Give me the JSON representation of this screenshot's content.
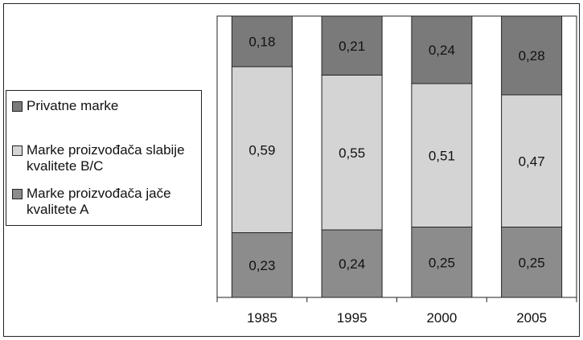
{
  "chart_data": {
    "type": "bar",
    "stacked": true,
    "categories": [
      "1985",
      "1995",
      "2000",
      "2005"
    ],
    "series": [
      {
        "name": "Marke proizvođača jače kvalitete A",
        "values": [
          0.23,
          0.24,
          0.25,
          0.25
        ],
        "color": "#8c8c8c",
        "labels": [
          "0,23",
          "0,24",
          "0,25",
          "0,25"
        ]
      },
      {
        "name": "Marke proizvođača slabije kvalitete B/C",
        "values": [
          0.59,
          0.55,
          0.51,
          0.47
        ],
        "color": "#d4d4d4",
        "labels": [
          "0,59",
          "0,55",
          "0,51",
          "0,47"
        ]
      },
      {
        "name": "Privatne marke",
        "values": [
          0.18,
          0.21,
          0.24,
          0.28
        ],
        "color": "#7a7a7a",
        "labels": [
          "0,18",
          "0,21",
          "0,24",
          "0,28"
        ]
      }
    ],
    "ylim": [
      0,
      1
    ],
    "grid": false,
    "legend": {
      "placement": "left",
      "order": [
        "Privatne marke",
        "Marke proizvođača slabije kvalitete B/C",
        "Marke proizvođača jače kvalitete A"
      ]
    }
  }
}
